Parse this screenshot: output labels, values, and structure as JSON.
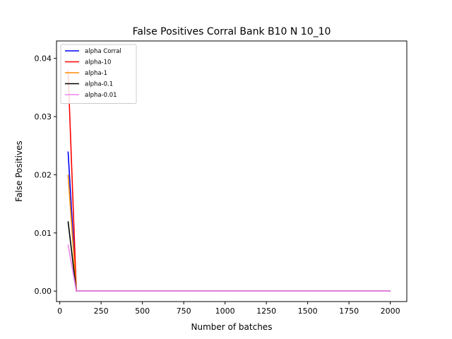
{
  "chart_data": {
    "type": "line",
    "title": "False Positives Corral Bank B10 N 10_10",
    "xlabel": "Number of batches",
    "ylabel": "False Positives",
    "xlim": [
      -20,
      2100
    ],
    "ylim": [
      -0.0018,
      0.043
    ],
    "xticks": [
      0,
      250,
      500,
      750,
      1000,
      1250,
      1500,
      1750,
      2000
    ],
    "yticks": [
      0.0,
      0.01,
      0.02,
      0.03,
      0.04
    ],
    "xtick_labels": [
      "0",
      "250",
      "500",
      "750",
      "1000",
      "1250",
      "1500",
      "1750",
      "2000"
    ],
    "ytick_labels": [
      "0.00",
      "0.01",
      "0.02",
      "0.03",
      "0.04"
    ],
    "grid": false,
    "legend": "top-left",
    "series": [
      {
        "name": "alpha Corral",
        "color": "#0000ff",
        "x": [
          50,
          100,
          2000
        ],
        "y": [
          0.024,
          0.0,
          0.0
        ]
      },
      {
        "name": "alpha-10",
        "color": "#ff0000",
        "x": [
          50,
          100,
          2000
        ],
        "y": [
          0.038,
          0.0,
          0.0
        ]
      },
      {
        "name": "alpha-1",
        "color": "#ff8c00",
        "x": [
          50,
          100,
          2000
        ],
        "y": [
          0.02,
          0.0,
          0.0
        ]
      },
      {
        "name": "alpha-0.1",
        "color": "#000000",
        "x": [
          50,
          100,
          2000
        ],
        "y": [
          0.012,
          0.0,
          0.0
        ]
      },
      {
        "name": "alpha-0.01",
        "color": "#ee82ee",
        "x": [
          50,
          100,
          2000
        ],
        "y": [
          0.008,
          0.0,
          0.0
        ]
      }
    ]
  }
}
